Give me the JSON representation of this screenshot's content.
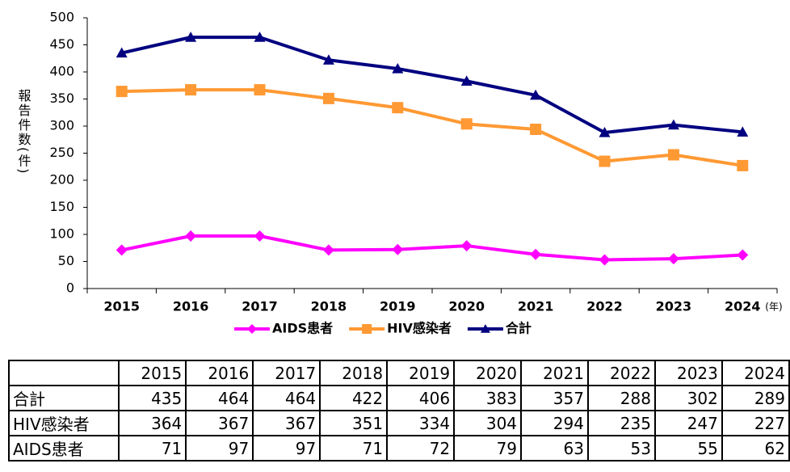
{
  "chart_data": {
    "type": "line",
    "y_label": "報告件数(件)",
    "x_unit": "(年)",
    "categories": [
      "2015",
      "2016",
      "2017",
      "2018",
      "2019",
      "2020",
      "2021",
      "2022",
      "2023",
      "2024"
    ],
    "series": [
      {
        "name": "AIDS患者",
        "color": "#ff00ff",
        "marker": "diamond",
        "values": [
          71,
          97,
          97,
          71,
          72,
          79,
          63,
          53,
          55,
          62
        ]
      },
      {
        "name": "HIV感染者",
        "color": "#ff9933",
        "marker": "square",
        "values": [
          364,
          367,
          367,
          351,
          334,
          304,
          294,
          235,
          247,
          227
        ]
      },
      {
        "name": "合計",
        "color": "#000080",
        "marker": "triangle",
        "values": [
          435,
          464,
          464,
          422,
          406,
          383,
          357,
          288,
          302,
          289
        ]
      }
    ],
    "ylim": [
      0,
      500
    ],
    "yticks": [
      0,
      50,
      100,
      150,
      200,
      250,
      300,
      350,
      400,
      450,
      500
    ],
    "grid": false,
    "legend": "bottom"
  },
  "table": {
    "header": [
      "2015",
      "2016",
      "2017",
      "2018",
      "2019",
      "2020",
      "2021",
      "2022",
      "2023",
      "2024"
    ],
    "rows": [
      {
        "label": "合計",
        "values": [
          435,
          464,
          464,
          422,
          406,
          383,
          357,
          288,
          302,
          289
        ]
      },
      {
        "label": "HIV感染者",
        "values": [
          364,
          367,
          367,
          351,
          334,
          304,
          294,
          235,
          247,
          227
        ]
      },
      {
        "label": "AIDS患者",
        "values": [
          71,
          97,
          97,
          71,
          72,
          79,
          63,
          53,
          55,
          62
        ]
      }
    ]
  }
}
